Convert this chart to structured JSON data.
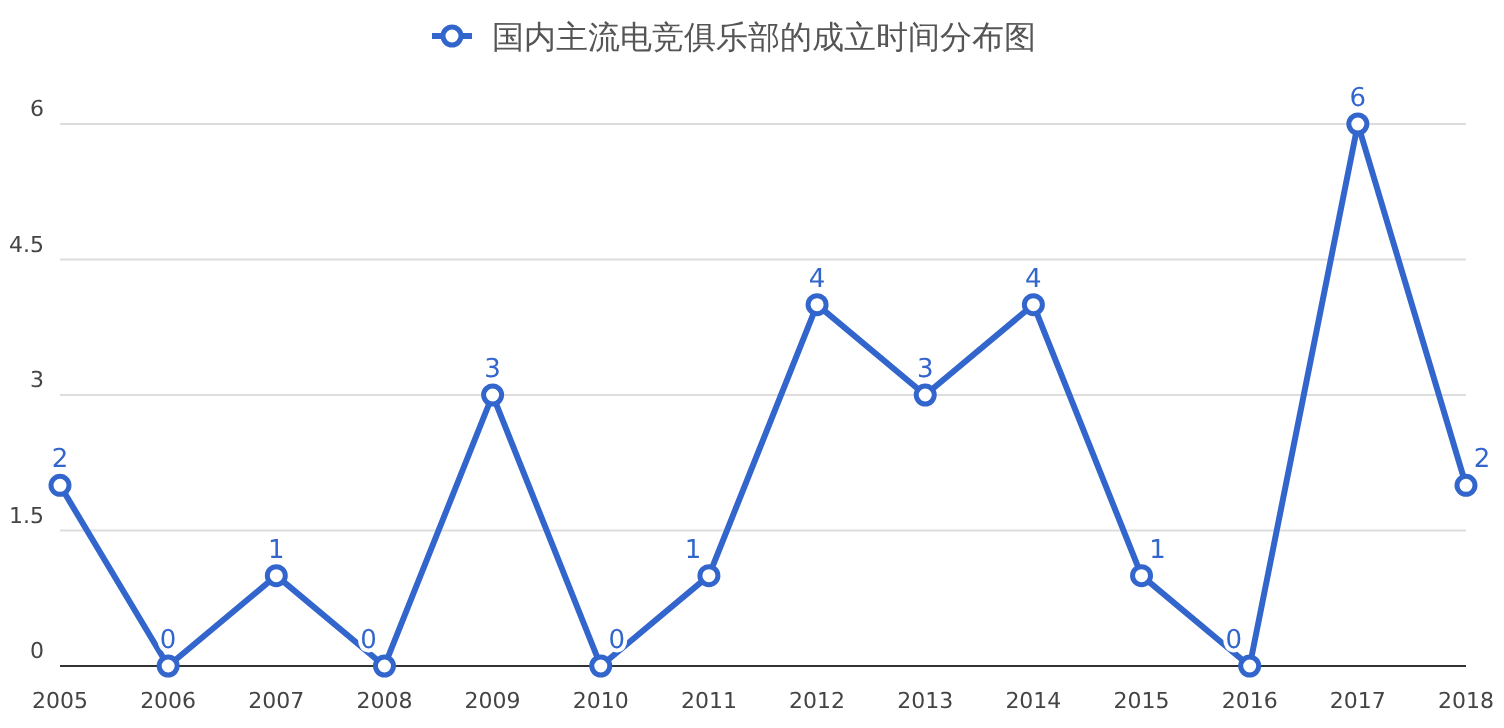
{
  "chart_data": {
    "type": "line",
    "categories": [
      "2005",
      "2006",
      "2007",
      "2008",
      "2009",
      "2010",
      "2011",
      "2012",
      "2013",
      "2014",
      "2015",
      "2016",
      "2017",
      "2018"
    ],
    "series": [
      {
        "name": "国内主流电竞俱乐部的成立时间分布图",
        "color": "#3366cc",
        "values": [
          2,
          0,
          1,
          0,
          3,
          0,
          1,
          4,
          3,
          4,
          1,
          0,
          6,
          2
        ]
      }
    ],
    "ylim": [
      0,
      6
    ],
    "yticks": [
      0,
      1.5,
      3,
      4.5,
      6
    ],
    "grid": "y",
    "legend": "top",
    "marker": "circle",
    "line_style": "solid",
    "data_labels": true
  }
}
